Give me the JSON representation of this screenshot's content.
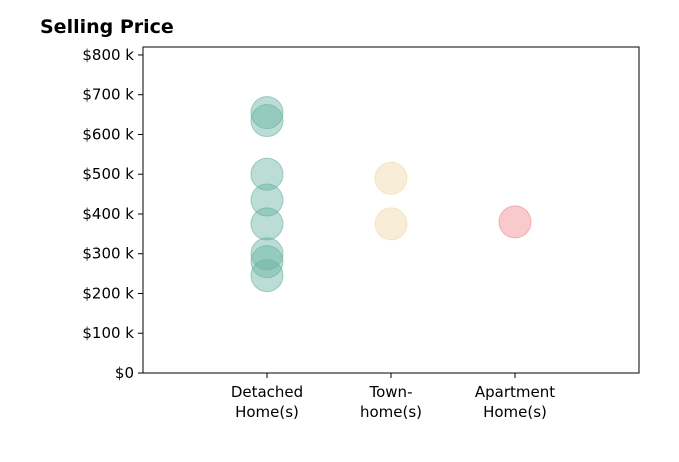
{
  "chart_data": {
    "type": "scatter",
    "title": "Selling Price",
    "xlabel": "",
    "ylabel": "",
    "categories": [
      [
        "Detached",
        "Home(s)"
      ],
      [
        "Town-",
        "home(s)"
      ],
      [
        "Apartment",
        "Home(s)"
      ]
    ],
    "y_ticks": [
      {
        "value": 0,
        "label": "$0"
      },
      {
        "value": 100000,
        "label": "$100 k"
      },
      {
        "value": 200000,
        "label": "$200 k"
      },
      {
        "value": 300000,
        "label": "$300 k"
      },
      {
        "value": 400000,
        "label": "$400 k"
      },
      {
        "value": 500000,
        "label": "$500 k"
      },
      {
        "value": 600000,
        "label": "$600 k"
      },
      {
        "value": 700000,
        "label": "$700 k"
      },
      {
        "value": 800000,
        "label": "$800 k"
      }
    ],
    "ylim": [
      0,
      820000
    ],
    "grid": false,
    "series": [
      {
        "category_index": 0,
        "color": "#69b3a2",
        "values": [
          655000,
          635000,
          500000,
          435000,
          375000,
          300000,
          280000,
          245000
        ]
      },
      {
        "category_index": 1,
        "color": "#f0d9a8",
        "values": [
          490000,
          375000
        ]
      },
      {
        "category_index": 2,
        "color": "#ef8a8f",
        "values": [
          380000
        ]
      }
    ]
  }
}
